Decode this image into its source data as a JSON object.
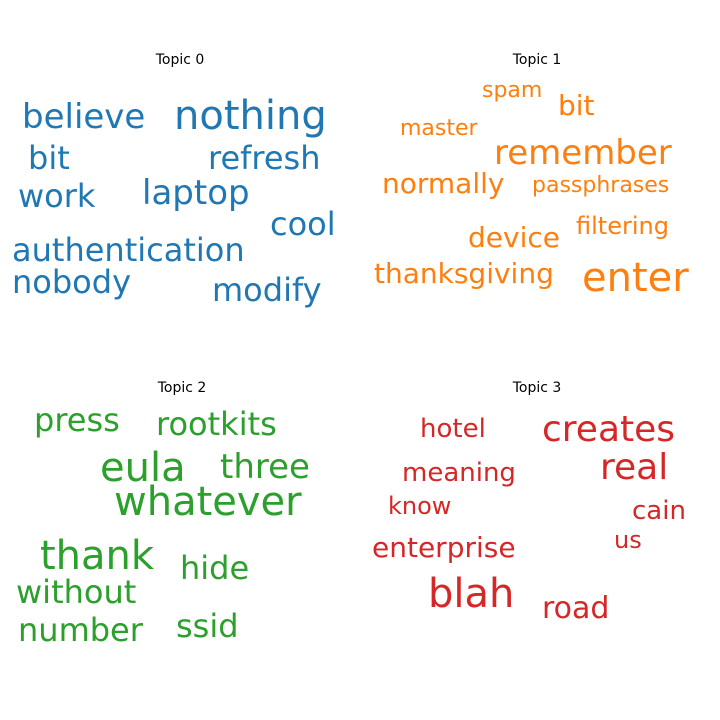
{
  "topics": [
    {
      "title": "Topic 0",
      "color": "#1f77b4",
      "words": [
        "believe",
        "nothing",
        "bit",
        "refresh",
        "work",
        "laptop",
        "cool",
        "authentication",
        "nobody",
        "modify"
      ]
    },
    {
      "title": "Topic 1",
      "color": "#ff7f0e",
      "words": [
        "spam",
        "bit",
        "master",
        "remember",
        "normally",
        "passphrases",
        "filtering",
        "device",
        "thanksgiving",
        "enter"
      ]
    },
    {
      "title": "Topic 2",
      "color": "#2ca02c",
      "words": [
        "press",
        "rootkits",
        "eula",
        "three",
        "whatever",
        "thank",
        "hide",
        "without",
        "number",
        "ssid"
      ]
    },
    {
      "title": "Topic 3",
      "color": "#d62728",
      "words": [
        "hotel",
        "creates",
        "real",
        "meaning",
        "know",
        "cain",
        "enterprise",
        "us",
        "blah",
        "road"
      ]
    }
  ]
}
